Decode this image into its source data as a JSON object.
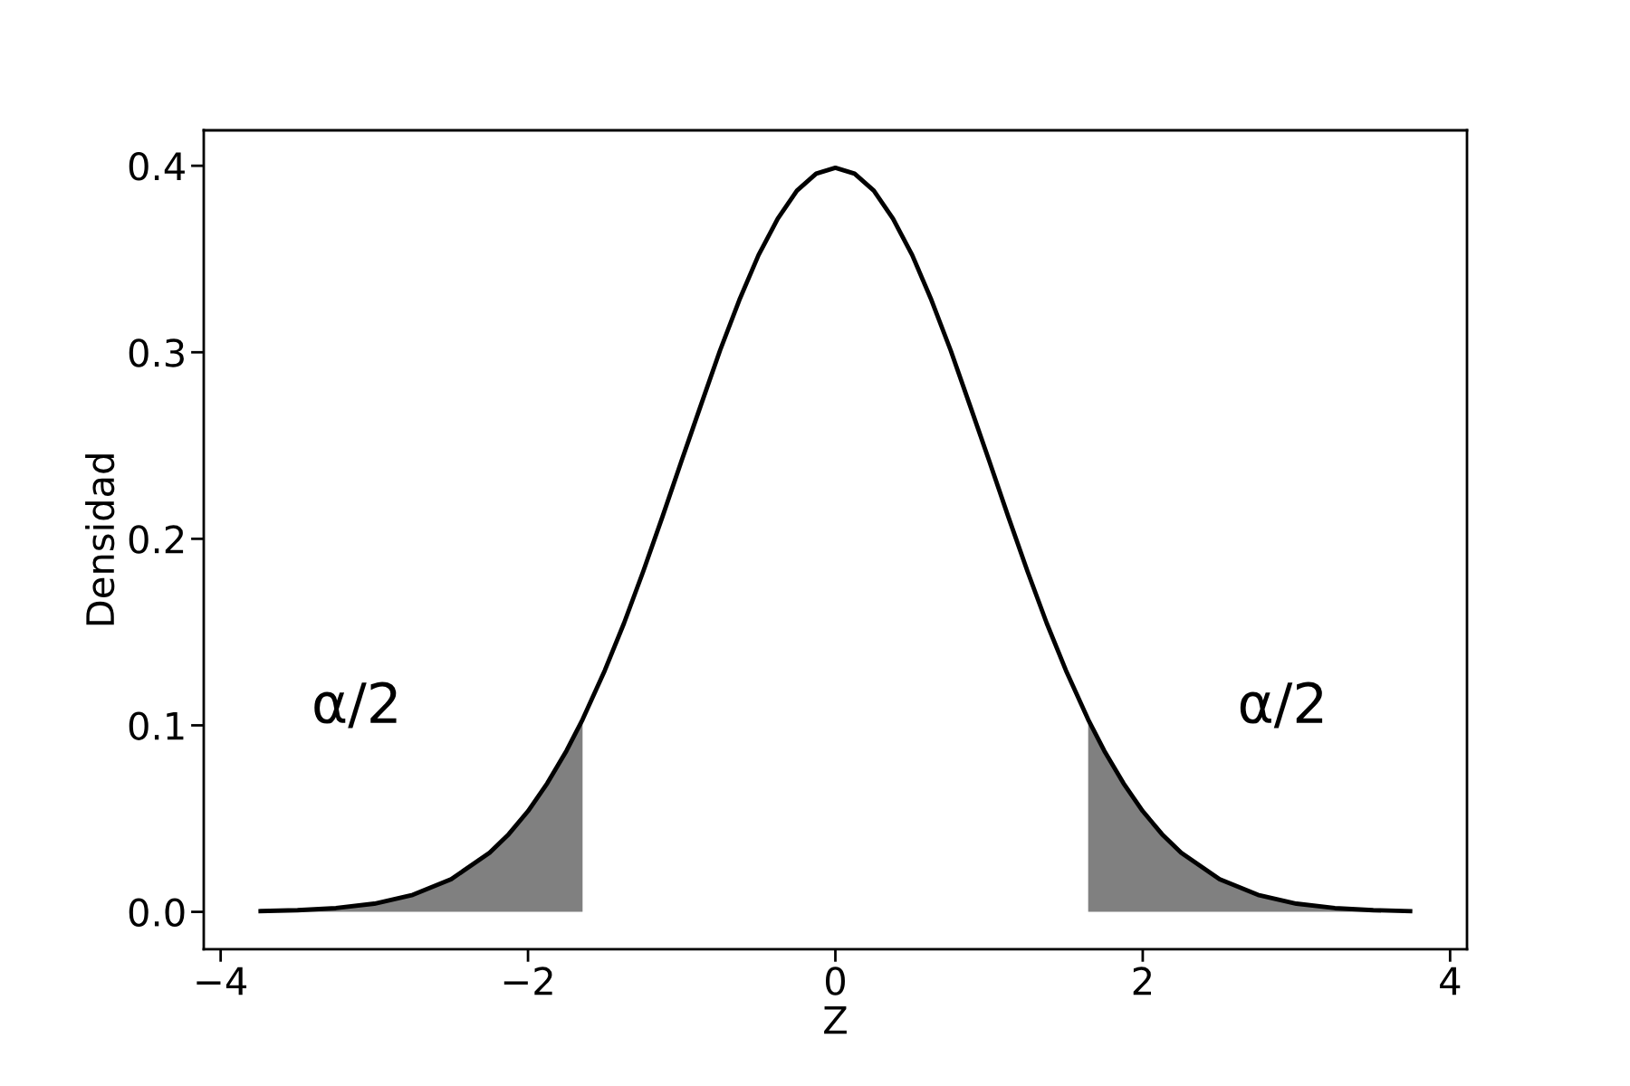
{
  "chart_data": {
    "type": "line",
    "xlabel": "Z",
    "ylabel": "Densidad",
    "series": [
      {
        "type": "area",
        "color": "#808080",
        "x": [
          -3.74,
          -3.5,
          -3.25,
          -3.0,
          -2.75,
          -2.5,
          -2.25,
          -2.0,
          -1.75,
          -1.645
        ],
        "values": [
          0.0004,
          0.0009,
          0.002,
          0.0044,
          0.0091,
          0.0175,
          0.0317,
          0.054,
          0.0863,
          0.1031
        ]
      },
      {
        "type": "area",
        "color": "#808080",
        "x": [
          1.645,
          1.75,
          2.0,
          2.25,
          2.5,
          2.75,
          3.0,
          3.25,
          3.5,
          3.74
        ],
        "values": [
          0.1031,
          0.0863,
          0.054,
          0.0317,
          0.0175,
          0.0091,
          0.0044,
          0.002,
          0.0009,
          0.0004
        ]
      },
      {
        "color": "#000000",
        "x": [
          -3.74,
          -3.5,
          -3.25,
          -3.0,
          -2.75,
          -2.5,
          -2.25,
          -2.125,
          -2.0,
          -1.875,
          -1.75,
          -1.645,
          -1.5,
          -1.375,
          -1.25,
          -1.125,
          -1.0,
          -0.875,
          -0.75,
          -0.625,
          -0.5,
          -0.375,
          -0.25,
          -0.125,
          0.0,
          0.125,
          0.25,
          0.375,
          0.5,
          0.625,
          0.75,
          0.875,
          1.0,
          1.125,
          1.25,
          1.375,
          1.5,
          1.645,
          1.75,
          1.875,
          2.0,
          2.125,
          2.25,
          2.5,
          2.75,
          3.0,
          3.25,
          3.5,
          3.74
        ],
        "values": [
          0.0004,
          0.0009,
          0.002,
          0.0044,
          0.0091,
          0.0175,
          0.0317,
          0.0417,
          0.054,
          0.0689,
          0.0863,
          0.1031,
          0.1295,
          0.1548,
          0.1826,
          0.2119,
          0.242,
          0.2717,
          0.3011,
          0.328,
          0.3521,
          0.3716,
          0.3867,
          0.3958,
          0.3989,
          0.3958,
          0.3867,
          0.3716,
          0.3521,
          0.328,
          0.3011,
          0.2717,
          0.242,
          0.2119,
          0.1826,
          0.1548,
          0.1295,
          0.1031,
          0.0863,
          0.0689,
          0.054,
          0.0417,
          0.0317,
          0.0175,
          0.0091,
          0.0044,
          0.002,
          0.0009,
          0.0004
        ]
      }
    ],
    "annotations": [
      "α/2",
      "α/2"
    ],
    "xlim": [
      -4.11,
      4.11
    ],
    "ylim": [
      -0.02,
      0.419
    ],
    "xticks": [
      {
        "value": -4,
        "label": "−4"
      },
      {
        "value": -2,
        "label": "−2"
      },
      0,
      2,
      4
    ],
    "yticks": [
      {
        "value": 0,
        "label": "0.0"
      },
      {
        "value": 0.1,
        "label": "0.1"
      },
      {
        "value": 0.2,
        "label": "0.2"
      },
      {
        "value": 0.3,
        "label": "0.3"
      },
      {
        "value": 0.4,
        "label": "0.4"
      }
    ],
    "grid": false,
    "legend": false,
    "line_style": "solid",
    "marker": "none"
  }
}
